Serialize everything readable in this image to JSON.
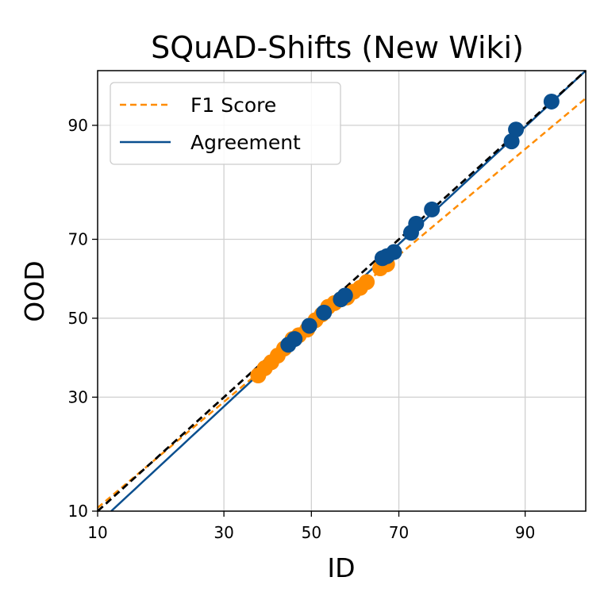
{
  "colors": {
    "f1": "#ff8c00",
    "agreement": "#0a4f8f",
    "diagonal": "#000000",
    "grid": "#d0d0d0"
  },
  "chart_data": {
    "type": "scatter",
    "title": "SQuAD-Shifts (New Wiki)",
    "xlabel": "ID",
    "ylabel": "OOD",
    "x_ticks": [
      10,
      30,
      50,
      70,
      90
    ],
    "y_ticks": [
      10,
      30,
      50,
      70,
      90
    ],
    "xlim": [
      10,
      95
    ],
    "ylim": [
      10,
      95
    ],
    "x_scale": "probit",
    "y_scale": "probit",
    "grid": true,
    "legend_position": "top-left",
    "diagonal": "y = x",
    "series": [
      {
        "name": "F1 Score",
        "line_style": "dashed",
        "fit_line": {
          "x": [
            10,
            95
          ],
          "y": [
            10.4,
            92.8
          ]
        },
        "points": [
          {
            "x": 37.5,
            "y": 35.2
          },
          {
            "x": 39.0,
            "y": 37.0
          },
          {
            "x": 40.5,
            "y": 38.5
          },
          {
            "x": 42.0,
            "y": 40.2
          },
          {
            "x": 43.5,
            "y": 42.0
          },
          {
            "x": 45.5,
            "y": 44.5
          },
          {
            "x": 47.0,
            "y": 45.5
          },
          {
            "x": 49.0,
            "y": 47.0
          },
          {
            "x": 51.0,
            "y": 49.5
          },
          {
            "x": 52.5,
            "y": 51.0
          },
          {
            "x": 54.0,
            "y": 53.0
          },
          {
            "x": 55.5,
            "y": 54.0
          },
          {
            "x": 57.0,
            "y": 55.0
          },
          {
            "x": 58.5,
            "y": 55.5
          },
          {
            "x": 60.0,
            "y": 57.0
          },
          {
            "x": 61.5,
            "y": 58.0
          },
          {
            "x": 63.0,
            "y": 59.5
          },
          {
            "x": 66.0,
            "y": 63.0
          },
          {
            "x": 67.5,
            "y": 64.0
          }
        ]
      },
      {
        "name": "Agreement",
        "line_style": "solid",
        "fit_line": {
          "x": [
            11.5,
            95
          ],
          "y": [
            10,
            95
          ]
        },
        "points": [
          {
            "x": 44.5,
            "y": 43.0
          },
          {
            "x": 46.0,
            "y": 44.5
          },
          {
            "x": 49.5,
            "y": 48.0
          },
          {
            "x": 53.0,
            "y": 51.5
          },
          {
            "x": 57.0,
            "y": 55.0
          },
          {
            "x": 58.0,
            "y": 56.0
          },
          {
            "x": 66.5,
            "y": 65.5
          },
          {
            "x": 67.5,
            "y": 66.0
          },
          {
            "x": 69.0,
            "y": 67.0
          },
          {
            "x": 72.5,
            "y": 71.5
          },
          {
            "x": 73.5,
            "y": 73.5
          },
          {
            "x": 76.5,
            "y": 76.5
          },
          {
            "x": 88.5,
            "y": 88.0
          },
          {
            "x": 89.0,
            "y": 89.5
          },
          {
            "x": 92.5,
            "y": 92.5
          }
        ]
      }
    ]
  }
}
